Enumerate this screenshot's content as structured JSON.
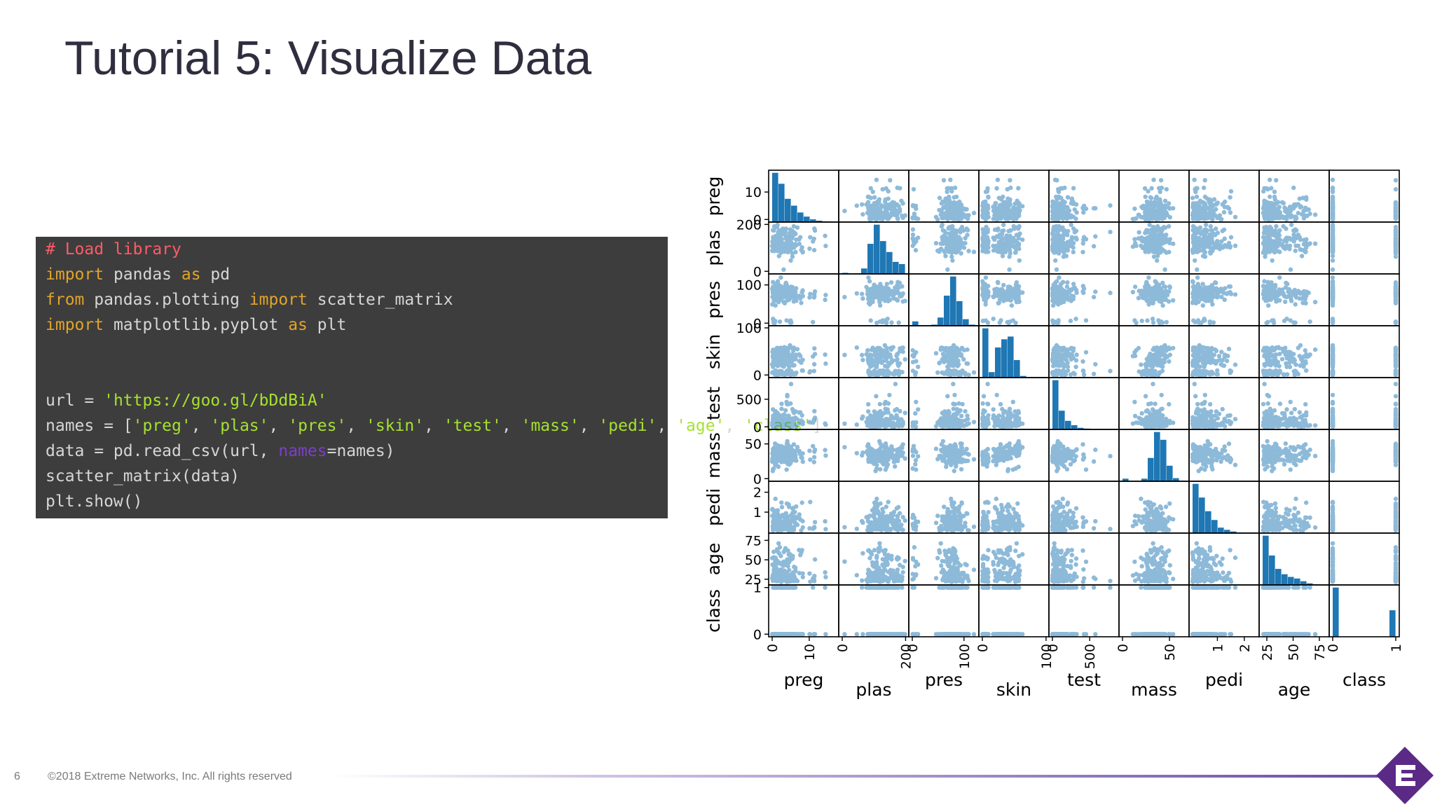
{
  "slide": {
    "title": "Tutorial 5: Visualize Data",
    "page_number": "6",
    "copyright": "©2018 Extreme Networks, Inc.  All rights reserved"
  },
  "code": {
    "comment": "# Load library",
    "l2_kw1": "import",
    "l2_mod": " pandas ",
    "l2_kw2": "as",
    "l2_alias": " pd",
    "l3_kw1": "from",
    "l3_mod": " pandas.plotting ",
    "l3_kw2": "import",
    "l3_name": " scatter_matrix",
    "l4_kw1": "import",
    "l4_mod": " matplotlib.pyplot ",
    "l4_kw2": "as",
    "l4_alias": " plt",
    "l5_var": "url = ",
    "l5_str": "'https://goo.gl/bDdBiA'",
    "l6_var": "names = [",
    "l6_end": "]",
    "names": [
      "'preg'",
      "'plas'",
      "'pres'",
      "'skin'",
      "'test'",
      "'mass'",
      "'pedi'",
      "'age'",
      "'class'"
    ],
    "l7_a": "data = pd.read_csv(url, ",
    "l7_kwarg": "names",
    "l7_b": "=names)",
    "l8": "scatter_matrix(data)",
    "l9": "plt.show()"
  },
  "colors": {
    "marker": "#1f77b4",
    "code_bg": "#3d3d3d",
    "logo": "#5b2a86"
  },
  "logo_icon": "extreme-networks-logo-icon",
  "chart_data": {
    "type": "scatter",
    "variables": [
      "preg",
      "plas",
      "pres",
      "skin",
      "test",
      "mass",
      "pedi",
      "age",
      "class"
    ],
    "ranges": {
      "preg": [
        0,
        17
      ],
      "plas": [
        0,
        199
      ],
      "pres": [
        0,
        122
      ],
      "skin": [
        0,
        99
      ],
      "test": [
        0,
        846
      ],
      "mass": [
        0,
        67.1
      ],
      "pedi": [
        0.078,
        2.42
      ],
      "age": [
        21,
        81
      ],
      "class": [
        0,
        1
      ]
    },
    "y_ticks": [
      {
        "var": "preg",
        "values": [
          0,
          10
        ],
        "labels": [
          "0",
          "10"
        ]
      },
      {
        "var": "plas",
        "values": [
          0,
          200
        ],
        "labels": [
          "0",
          "200"
        ]
      },
      {
        "var": "pres",
        "values": [
          0,
          100
        ],
        "labels": [
          "0",
          "100"
        ]
      },
      {
        "var": "skin",
        "values": [
          0,
          100
        ],
        "labels": [
          "0",
          "100"
        ]
      },
      {
        "var": "test",
        "values": [
          0,
          500
        ],
        "labels": [
          "0",
          "500"
        ]
      },
      {
        "var": "mass",
        "values": [
          0,
          50
        ],
        "labels": [
          "0",
          "50"
        ]
      },
      {
        "var": "pedi",
        "values": [
          1,
          2
        ],
        "labels": [
          "1",
          "2"
        ]
      },
      {
        "var": "age",
        "values": [
          25,
          50,
          75
        ],
        "labels": [
          "25",
          "50",
          "75"
        ]
      },
      {
        "var": "class",
        "values": [
          0,
          1
        ],
        "labels": [
          "0",
          "1"
        ]
      }
    ],
    "x_ticks": [
      {
        "var": "preg",
        "values": [
          0,
          10
        ],
        "labels": [
          "0",
          "10"
        ]
      },
      {
        "var": "plas",
        "values": [
          0,
          200
        ],
        "labels": [
          "0",
          "200"
        ]
      },
      {
        "var": "pres",
        "values": [
          0,
          100
        ],
        "labels": [
          "0",
          "100"
        ]
      },
      {
        "var": "skin",
        "values": [
          0,
          100
        ],
        "labels": [
          "0",
          "100"
        ]
      },
      {
        "var": "test",
        "values": [
          0,
          500
        ],
        "labels": [
          "0",
          "500"
        ]
      },
      {
        "var": "mass",
        "values": [
          0,
          50
        ],
        "labels": [
          "0",
          "50"
        ]
      },
      {
        "var": "pedi",
        "values": [
          1,
          2
        ],
        "labels": [
          "1",
          "2"
        ]
      },
      {
        "var": "age",
        "values": [
          25,
          50,
          75
        ],
        "labels": [
          "25",
          "50",
          "75"
        ]
      },
      {
        "var": "class",
        "values": [
          0,
          1
        ],
        "labels": [
          "0",
          "1"
        ]
      }
    ],
    "histograms": {
      "preg": [
        0.36,
        0.28,
        0.17,
        0.12,
        0.07,
        0.04,
        0.02,
        0.01,
        0.005,
        0.003
      ],
      "plas": [
        0.02,
        0.0,
        0.01,
        0.1,
        0.55,
        0.9,
        0.6,
        0.4,
        0.22,
        0.18
      ],
      "pres": [
        0.08,
        0.0,
        0.0,
        0.02,
        0.15,
        0.55,
        0.9,
        0.45,
        0.12,
        0.02
      ],
      "skin": [
        0.9,
        0.1,
        0.55,
        0.7,
        0.75,
        0.32,
        0.03,
        0.0,
        0.0,
        0.01
      ],
      "test": [
        0.92,
        0.35,
        0.16,
        0.08,
        0.03,
        0.015,
        0.008,
        0.003,
        0.0,
        0.002
      ],
      "mass": [
        0.05,
        0.0,
        0.0,
        0.05,
        0.45,
        0.95,
        0.8,
        0.3,
        0.06,
        0.01
      ],
      "pedi": [
        0.9,
        0.65,
        0.4,
        0.24,
        0.1,
        0.06,
        0.03,
        0.01,
        0.005,
        0.003
      ],
      "age": [
        0.92,
        0.55,
        0.3,
        0.2,
        0.15,
        0.12,
        0.07,
        0.03,
        0.01,
        0.005
      ],
      "class": [
        0.65,
        0,
        0,
        0,
        0,
        0,
        0,
        0,
        0,
        0.35
      ]
    },
    "grid": false,
    "legend": "none"
  }
}
